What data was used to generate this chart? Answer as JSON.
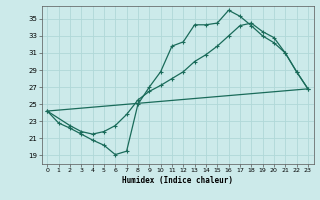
{
  "xlabel": "Humidex (Indice chaleur)",
  "bg_color": "#cceaea",
  "grid_color": "#b0d8d8",
  "line_color": "#1a6b5a",
  "xlim": [
    -0.5,
    23.5
  ],
  "ylim": [
    18.0,
    36.5
  ],
  "yticks": [
    19,
    21,
    23,
    25,
    27,
    29,
    31,
    33,
    35
  ],
  "xticks": [
    0,
    1,
    2,
    3,
    4,
    5,
    6,
    7,
    8,
    9,
    10,
    11,
    12,
    13,
    14,
    15,
    16,
    17,
    18,
    19,
    20,
    21,
    22,
    23
  ],
  "line1_x": [
    0,
    1,
    2,
    3,
    4,
    5,
    6,
    7,
    8,
    9,
    10,
    11,
    12,
    13,
    14,
    15,
    16,
    17,
    18,
    19,
    20,
    21,
    22,
    23
  ],
  "line1_y": [
    24.2,
    22.8,
    22.2,
    21.5,
    20.8,
    20.2,
    19.1,
    19.5,
    25.0,
    27.0,
    28.8,
    31.8,
    32.3,
    34.3,
    34.3,
    34.5,
    36.0,
    35.3,
    34.2,
    33.0,
    32.2,
    31.0,
    28.8,
    26.8
  ],
  "line2_x": [
    0,
    2,
    3,
    4,
    5,
    6,
    7,
    8,
    9,
    10,
    11,
    12,
    13,
    14,
    15,
    16,
    17,
    18,
    19,
    20,
    21,
    22,
    23
  ],
  "line2_y": [
    24.2,
    22.5,
    21.8,
    21.5,
    21.8,
    22.5,
    23.8,
    25.5,
    26.5,
    27.2,
    28.0,
    28.8,
    30.0,
    30.8,
    31.8,
    33.0,
    34.2,
    34.5,
    33.5,
    32.8,
    31.0,
    28.8,
    26.8
  ],
  "line3_x": [
    0,
    23
  ],
  "line3_y": [
    24.2,
    26.8
  ]
}
